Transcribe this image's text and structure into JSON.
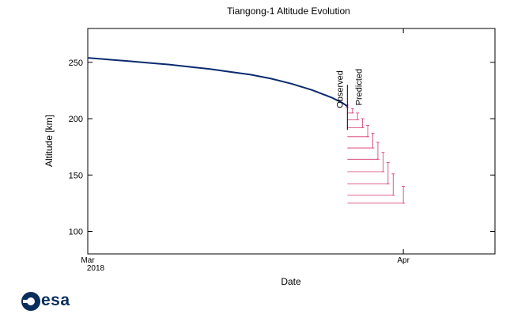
{
  "chart_data": {
    "type": "line",
    "title": "Tiangong-1 Altitude Evolution",
    "xlabel": "Date",
    "ylabel": "Altitude [km]",
    "xlim": [
      "2018-03-01",
      "2018-04-10"
    ],
    "ylim": [
      80,
      280
    ],
    "yticks": [
      100,
      150,
      200,
      250
    ],
    "xticks": [
      {
        "date": "2018-03-01",
        "label": "Mar",
        "sublabel": "2018"
      },
      {
        "date": "2018-04-01",
        "label": "Apr",
        "sublabel": ""
      }
    ],
    "grid": false,
    "series": [
      {
        "kind": "observed",
        "color": "#0b2a6f",
        "points": [
          [
            "2018-03-01",
            254
          ],
          [
            "2018-03-03",
            252.5
          ],
          [
            "2018-03-05",
            251
          ],
          [
            "2018-03-07",
            249.5
          ],
          [
            "2018-03-09",
            248
          ],
          [
            "2018-03-11",
            246
          ],
          [
            "2018-03-13",
            244
          ],
          [
            "2018-03-15",
            241.5
          ],
          [
            "2018-03-17",
            239
          ],
          [
            "2018-03-19",
            235.5
          ],
          [
            "2018-03-21",
            231
          ],
          [
            "2018-03-23",
            225.5
          ],
          [
            "2018-03-25",
            218.5
          ],
          [
            "2018-03-26",
            214
          ],
          [
            "2018-03-26.5",
            211
          ]
        ]
      },
      {
        "kind": "predicted",
        "color": "#d6336c",
        "points": [
          {
            "x": "2018-03-26.5",
            "low": 210,
            "high": 212
          },
          {
            "x": "2018-03-27",
            "low": 205,
            "high": 209
          },
          {
            "x": "2018-03-27.5",
            "low": 199,
            "high": 205
          },
          {
            "x": "2018-03-28",
            "low": 192,
            "high": 200
          },
          {
            "x": "2018-03-28.5",
            "low": 184,
            "high": 194
          },
          {
            "x": "2018-03-29",
            "low": 174,
            "high": 187
          },
          {
            "x": "2018-03-29.5",
            "low": 164,
            "high": 179
          },
          {
            "x": "2018-03-30",
            "low": 153,
            "high": 170
          },
          {
            "x": "2018-03-30.5",
            "low": 142,
            "high": 161
          },
          {
            "x": "2018-03-31",
            "low": 132,
            "high": 151
          },
          {
            "x": "2018-04-01",
            "low": 125,
            "high": 140
          }
        ]
      }
    ],
    "annotations": [
      {
        "text": "Observed",
        "x": "2018-03-26.5"
      },
      {
        "text": "Predicted",
        "x": "2018-03-26.5"
      }
    ]
  },
  "logo": {
    "text": "esa"
  }
}
